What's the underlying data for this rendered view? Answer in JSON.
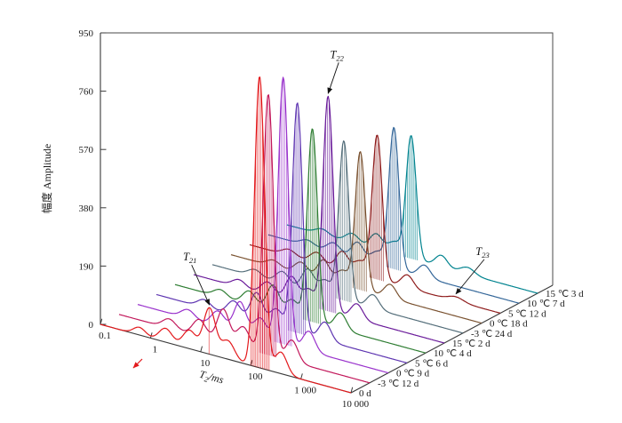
{
  "figure": {
    "y_axis": {
      "title": "幅度 Amplitude",
      "ticks": [
        "0",
        "190",
        "380",
        "570",
        "760",
        "950"
      ]
    },
    "x_axis": {
      "title_var": "T",
      "title_sub": "2",
      "title_unit": "/ms",
      "ticks": [
        "0.1",
        "1",
        "10",
        "100",
        "1 000",
        "10 000"
      ]
    }
  },
  "chart_data": {
    "type": "line",
    "projection": "3d-waterfall",
    "x_label": "T2/ms",
    "y_label": "幅度 Amplitude",
    "x_scale": "log",
    "x_range_ms": [
      0.1,
      10000
    ],
    "x_ticks_ms": [
      0.1,
      1,
      10,
      100,
      1000,
      10000
    ],
    "y_range": [
      0,
      950
    ],
    "y_ticks": [
      0,
      190,
      380,
      570,
      760,
      950
    ],
    "grid": false,
    "legend": "depth-axis-labels",
    "peaks_format": "[T2_center_ms, amplitude, sigma_decades] summed as gaussians in log10(T2)",
    "series": [
      {
        "label": "0 d",
        "color": "#e3191c",
        "peaks": [
          [
            0.6,
            25,
            0.12
          ],
          [
            2,
            45,
            0.13
          ],
          [
            6,
            60,
            0.13
          ],
          [
            15,
            150,
            0.12
          ],
          [
            35,
            60,
            0.13
          ],
          [
            150,
            950,
            0.1
          ],
          [
            400,
            70,
            0.12
          ]
        ]
      },
      {
        "label": "-3 ℃ 12 d",
        "color": "#c2185b",
        "peaks": [
          [
            1,
            30,
            0.13
          ],
          [
            4,
            55,
            0.13
          ],
          [
            12,
            110,
            0.12
          ],
          [
            30,
            70,
            0.13
          ],
          [
            95,
            850,
            0.1
          ],
          [
            280,
            70,
            0.12
          ]
        ]
      },
      {
        "label": "0 ℃ 9 d",
        "color": "#9932cc",
        "peaks": [
          [
            1,
            28,
            0.13
          ],
          [
            4,
            50,
            0.13
          ],
          [
            11,
            100,
            0.12
          ],
          [
            28,
            65,
            0.13
          ],
          [
            80,
            870,
            0.1
          ],
          [
            260,
            65,
            0.12
          ]
        ]
      },
      {
        "label": "5 ℃ 6 d",
        "color": "#5e35b1",
        "peaks": [
          [
            0.9,
            26,
            0.13
          ],
          [
            3.5,
            48,
            0.13
          ],
          [
            10,
            95,
            0.12
          ],
          [
            25,
            60,
            0.13
          ],
          [
            65,
            750,
            0.1
          ],
          [
            230,
            60,
            0.12
          ]
        ]
      },
      {
        "label": "10 ℃ 4 d",
        "color": "#2e7d32",
        "peaks": [
          [
            0.8,
            24,
            0.13
          ],
          [
            3,
            45,
            0.13
          ],
          [
            9,
            85,
            0.12
          ],
          [
            22,
            55,
            0.13
          ],
          [
            55,
            630,
            0.1
          ],
          [
            200,
            55,
            0.12
          ]
        ]
      },
      {
        "label": "15 ℃ 2 d",
        "color": "#6a1b9a",
        "peaks": [
          [
            0.8,
            24,
            0.13
          ],
          [
            3,
            42,
            0.13
          ],
          [
            9,
            80,
            0.12
          ],
          [
            20,
            55,
            0.13
          ],
          [
            48,
            700,
            0.1
          ],
          [
            180,
            50,
            0.12
          ]
        ]
      },
      {
        "label": "-3 ℃ 24 d",
        "color": "#546e7a",
        "peaks": [
          [
            0.7,
            22,
            0.13
          ],
          [
            2.5,
            40,
            0.13
          ],
          [
            8,
            70,
            0.12
          ],
          [
            18,
            50,
            0.13
          ],
          [
            42,
            520,
            0.1
          ],
          [
            160,
            45,
            0.12
          ]
        ]
      },
      {
        "label": "0 ℃ 18 d",
        "color": "#7a5230",
        "peaks": [
          [
            0.7,
            20,
            0.13
          ],
          [
            2.5,
            38,
            0.13
          ],
          [
            7,
            65,
            0.12
          ],
          [
            17,
            48,
            0.13
          ],
          [
            38,
            450,
            0.1
          ],
          [
            150,
            45,
            0.12
          ]
        ]
      },
      {
        "label": "5 ℃ 12 d",
        "color": "#8e1b1b",
        "peaks": [
          [
            0.6,
            20,
            0.13
          ],
          [
            2.2,
            35,
            0.13
          ],
          [
            7,
            60,
            0.12
          ],
          [
            16,
            45,
            0.13
          ],
          [
            35,
            470,
            0.1
          ],
          [
            140,
            42,
            0.12
          ],
          [
            1300,
            14,
            0.15
          ]
        ]
      },
      {
        "label": "10 ℃ 7 d",
        "color": "#336699",
        "peaks": [
          [
            0.6,
            18,
            0.13
          ],
          [
            2,
            32,
            0.13
          ],
          [
            6,
            55,
            0.12
          ],
          [
            15,
            42,
            0.13
          ],
          [
            32,
            460,
            0.1
          ],
          [
            130,
            40,
            0.12
          ]
        ]
      },
      {
        "label": "15 ℃ 3 d",
        "color": "#00838f",
        "peaks": [
          [
            0.5,
            18,
            0.13
          ],
          [
            2,
            30,
            0.13
          ],
          [
            6,
            50,
            0.12
          ],
          [
            14,
            40,
            0.13
          ],
          [
            30,
            400,
            0.1
          ],
          [
            120,
            38,
            0.12
          ],
          [
            400,
            22,
            0.14
          ]
        ]
      }
    ],
    "annotations": [
      {
        "var": "T",
        "sub": "21",
        "series_index": 0,
        "t2_ms": 15,
        "label_offset": [
          -22,
          -50
        ]
      },
      {
        "var": "T",
        "sub": "22",
        "series_index": 5,
        "t2_ms": 48,
        "label_offset": [
          10,
          -40
        ]
      },
      {
        "var": "T",
        "sub": "23",
        "series_index": 8,
        "t2_ms": 1300,
        "label_offset": [
          30,
          -44
        ]
      }
    ],
    "misc_marks": [
      {
        "name": "red-pointer-mark",
        "color": "#e3191c"
      }
    ]
  }
}
